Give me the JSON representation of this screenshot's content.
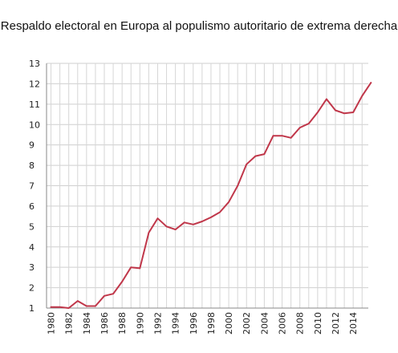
{
  "title": "Respaldo electoral en Europa al populismo autoritario de extrema derecha",
  "chart_data": {
    "type": "line",
    "title": "Respaldo electoral en Europa al populismo autoritario de extrema derecha",
    "xlabel": "",
    "ylabel": "",
    "xlim": [
      1979.5,
      2015.7
    ],
    "ylim": [
      1,
      13
    ],
    "y_ticks": [
      1,
      2,
      3,
      4,
      5,
      6,
      7,
      8,
      9,
      10,
      11,
      12,
      13
    ],
    "x_ticks": [
      1980,
      1982,
      1984,
      1986,
      1988,
      1990,
      1992,
      1994,
      1996,
      1998,
      2000,
      2002,
      2004,
      2006,
      2008,
      2010,
      2012,
      2014
    ],
    "grid": true,
    "legend": "none",
    "series": [
      {
        "color": "#c0374a",
        "x": [
          1980,
          1981,
          1982,
          1983,
          1984,
          1985,
          1986,
          1987,
          1988,
          1989,
          1990,
          1991,
          1992,
          1993,
          1994,
          1995,
          1996,
          1997,
          1998,
          1999,
          2000,
          2001,
          2002,
          2003,
          2004,
          2005,
          2006,
          2007,
          2008,
          2009,
          2010,
          2011,
          2012,
          2013,
          2014,
          2015,
          2016
        ],
        "values": [
          1.05,
          1.05,
          1.0,
          1.35,
          1.1,
          1.1,
          1.6,
          1.7,
          2.3,
          3.0,
          2.95,
          4.7,
          5.4,
          5.0,
          4.85,
          5.2,
          5.1,
          5.25,
          5.45,
          5.7,
          6.2,
          7.0,
          8.05,
          8.45,
          8.55,
          9.45,
          9.45,
          9.35,
          9.85,
          10.05,
          10.6,
          11.25,
          10.7,
          10.55,
          10.6,
          11.4,
          12.05
        ]
      }
    ]
  }
}
